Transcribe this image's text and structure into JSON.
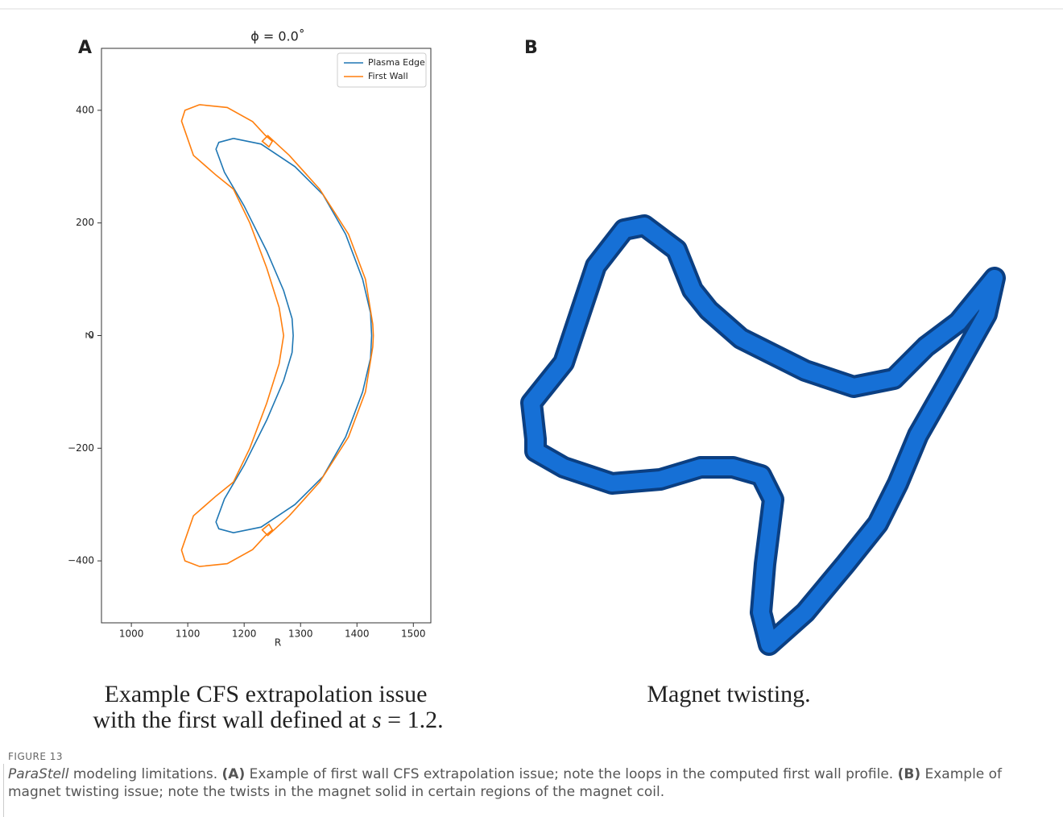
{
  "panels": [
    {
      "label": "A",
      "caption": [
        "Example CFS extrapolation issue",
        "with the first wall defined at ",
        "s",
        " = 1.2."
      ]
    },
    {
      "label": "B",
      "caption": [
        "Magnet twisting."
      ]
    }
  ],
  "chart_data": {
    "type": "line",
    "title": "ϕ = 0.0˚",
    "xlabel": "R",
    "ylabel": "Z",
    "xlim": [
      947,
      1531
    ],
    "ylim": [
      -510,
      510
    ],
    "xticks": [
      1000,
      1100,
      1200,
      1300,
      1400,
      1500
    ],
    "yticks": [
      {
        "value": -400,
        "label": "−400"
      },
      {
        "value": -200,
        "label": "−200"
      },
      0,
      200,
      400
    ],
    "legend": "upper right",
    "series": [
      {
        "name": "Plasma Edge",
        "color": "#1f77b4",
        "x": [
          1181,
          1230,
          1290,
          1340,
          1380,
          1410,
          1424,
          1426,
          1424,
          1410,
          1380,
          1340,
          1290,
          1230,
          1181,
          1155,
          1150,
          1165,
          1200,
          1240,
          1270,
          1285,
          1287,
          1285,
          1270,
          1240,
          1200,
          1165,
          1150,
          1155,
          1181
        ],
        "values": [
          350,
          340,
          300,
          250,
          180,
          100,
          40,
          0,
          -40,
          -100,
          -180,
          -250,
          -300,
          -340,
          -350,
          -343,
          -331,
          -290,
          -230,
          -150,
          -80,
          -30,
          0,
          30,
          80,
          150,
          230,
          290,
          331,
          343,
          350
        ]
      },
      {
        "name": "First Wall",
        "color": "#ff7f0e",
        "x": [
          1121,
          1095,
          1089,
          1110,
          1150,
          1181,
          1210,
          1240,
          1262,
          1270,
          1262,
          1240,
          1210,
          1181,
          1150,
          1110,
          1089,
          1095,
          1121,
          1170,
          1215,
          1238,
          1250,
          1244,
          1232,
          1242,
          1280,
          1334,
          1385,
          1415,
          1428,
          1429,
          1428,
          1415,
          1385,
          1334,
          1280,
          1242,
          1232,
          1244,
          1250,
          1238,
          1215,
          1170,
          1121
        ],
        "values": [
          410,
          400,
          381,
          320,
          285,
          260,
          200,
          120,
          50,
          0,
          -50,
          -120,
          -200,
          -260,
          -285,
          -320,
          -381,
          -400,
          -410,
          -405,
          -380,
          -355,
          -345,
          -335,
          -345,
          -355,
          -320,
          -260,
          -180,
          -100,
          -20,
          0,
          20,
          100,
          180,
          260,
          320,
          355,
          345,
          335,
          345,
          355,
          380,
          405,
          410
        ]
      }
    ]
  },
  "figure": {
    "number": "FIGURE 13",
    "caption": [
      "ParaStell",
      " modeling limitations. ",
      "(A)",
      " Example of first wall CFS extrapolation issue; note the loops in the computed first wall profile. ",
      "(B)",
      " Example of magnet twisting issue; note the twists in the magnet solid in certain regions of the magnet coil."
    ]
  }
}
